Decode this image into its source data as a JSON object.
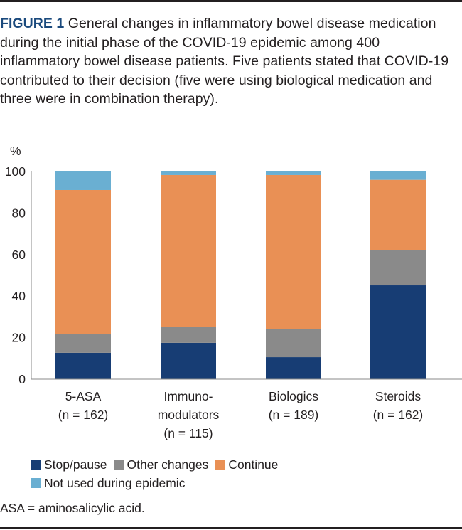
{
  "caption": {
    "label": "FIGURE 1",
    "text": " General changes in inflammatory bowel disease medication during the initial phase of the COVID-19 epidemic among 400 inflammatory bowel disease patients. Five patients stated that COVID-19 contributed to their decision (five were using biological medication and three were in combination therapy)."
  },
  "footnote": "ASA = aminosalicylic acid.",
  "chart_data": {
    "type": "bar",
    "stacked": true,
    "title": "",
    "xlabel": "",
    "ylabel": "%",
    "ylim": [
      0,
      100
    ],
    "yticks": [
      0,
      20,
      40,
      60,
      80,
      100
    ],
    "grid": false,
    "legend_position": "bottom-left",
    "categories": [
      [
        "5-ASA",
        "(n = 162)"
      ],
      [
        "Immuno-",
        "modulators",
        "(n = 115)"
      ],
      [
        "Biologics",
        "(n = 189)"
      ],
      [
        "Steroids",
        "(n = 162)"
      ]
    ],
    "series": [
      {
        "name": "Stop/pause",
        "color": "#173d74",
        "values": [
          12.7,
          17.5,
          10.6,
          45.2
        ]
      },
      {
        "name": "Other changes",
        "color": "#8a8a8a",
        "values": [
          8.9,
          7.8,
          13.7,
          16.8
        ]
      },
      {
        "name": "Continue",
        "color": "#e99055",
        "values": [
          69.5,
          73.0,
          74.0,
          34.0
        ]
      },
      {
        "name": "Not used during epidemic",
        "color": "#6aafd2",
        "values": [
          8.9,
          1.7,
          1.7,
          4.0
        ]
      }
    ]
  }
}
